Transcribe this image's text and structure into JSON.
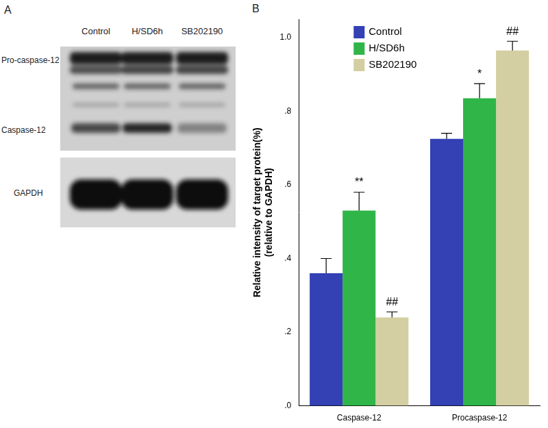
{
  "panel_labels": [
    "A",
    "B"
  ],
  "blot": {
    "lanes": [
      "Control",
      "H/SD6h",
      "SB202190"
    ],
    "band_labels": [
      "Pro-caspase-12",
      "Caspase-12"
    ],
    "loading_control": "GAPDH"
  },
  "chart_data": {
    "type": "bar",
    "y_label": [
      "Relative intensity of target protein(%)",
      "(relative to GAPDH)"
    ],
    "categories": [
      "Caspase-12",
      "Procaspase-12"
    ],
    "series": [
      {
        "name": "Control",
        "color": "#3341b5",
        "values": [
          0.36,
          0.725
        ],
        "errors": [
          0.04,
          0.015
        ]
      },
      {
        "name": "H/SD6h",
        "color": "#2fb548",
        "values": [
          0.53,
          0.835
        ],
        "errors": [
          0.05,
          0.04
        ]
      },
      {
        "name": "SB202190",
        "color": "#d3cfa2",
        "values": [
          0.24,
          0.965
        ],
        "errors": [
          0.015,
          0.025
        ]
      }
    ],
    "ylim": [
      0,
      1.05
    ],
    "yticks": [
      {
        "value": 0,
        "label": ".0"
      },
      {
        "value": 0.2,
        "label": ".2"
      },
      {
        "value": 0.4,
        "label": ".4"
      },
      {
        "value": 0.6,
        "label": ".6"
      },
      {
        "value": 0.8,
        "label": ".8"
      },
      {
        "value": 1,
        "label": "1.0"
      }
    ],
    "grid": false,
    "legend": "upper left",
    "annotations": [
      {
        "text": "**",
        "category": "Caspase-12",
        "series": "H/SD6h"
      },
      {
        "text": "##",
        "category": "Caspase-12",
        "series": "SB202190"
      },
      {
        "text": "*",
        "category": "Procaspase-12",
        "series": "H/SD6h"
      },
      {
        "text": "##",
        "category": "Procaspase-12",
        "series": "SB202190"
      }
    ]
  }
}
